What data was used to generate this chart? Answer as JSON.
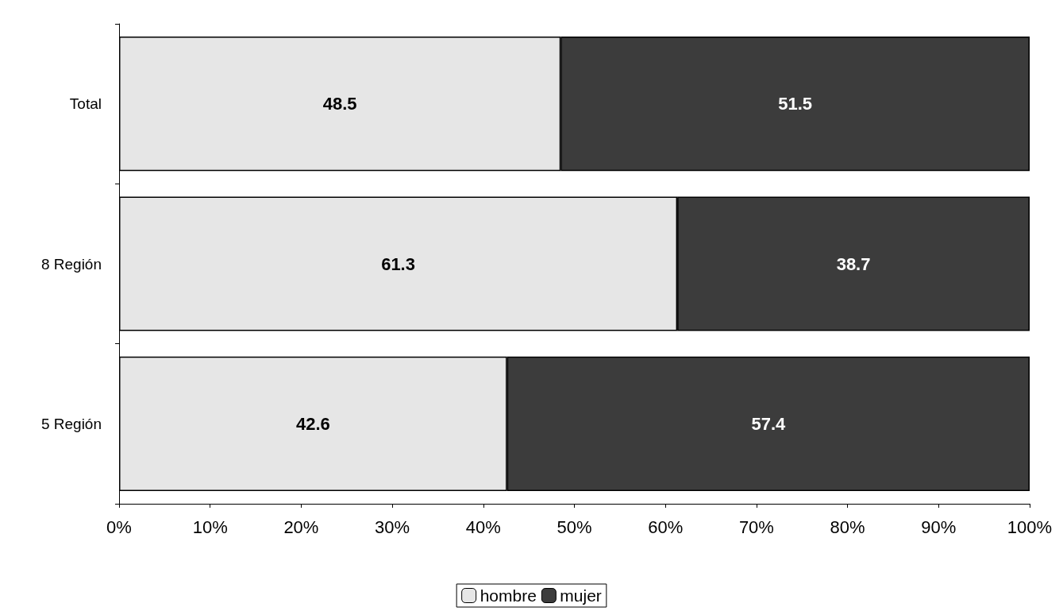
{
  "chart_data": {
    "type": "bar",
    "orientation": "horizontal",
    "stacked": true,
    "categories": [
      "Total",
      "8 Región",
      "5 Región"
    ],
    "series": [
      {
        "name": "hombre",
        "color": "#e6e6e6",
        "values": [
          48.5,
          61.3,
          42.6
        ]
      },
      {
        "name": "mujer",
        "color": "#3c3c3c",
        "values": [
          51.5,
          38.7,
          57.4
        ]
      }
    ],
    "xlim": [
      0,
      100
    ],
    "xticks": [
      {
        "value": 0,
        "label": "0%"
      },
      {
        "value": 10,
        "label": "10%"
      },
      {
        "value": 20,
        "label": "20%"
      },
      {
        "value": 30,
        "label": "30%"
      },
      {
        "value": 40,
        "label": "40%"
      },
      {
        "value": 50,
        "label": "50%"
      },
      {
        "value": 60,
        "label": "60%"
      },
      {
        "value": 70,
        "label": "70%"
      },
      {
        "value": 80,
        "label": "80%"
      },
      {
        "value": 90,
        "label": "90%"
      },
      {
        "value": 100,
        "label": "100%"
      }
    ],
    "data_labels": true,
    "legend": "bottom",
    "grid": false
  }
}
